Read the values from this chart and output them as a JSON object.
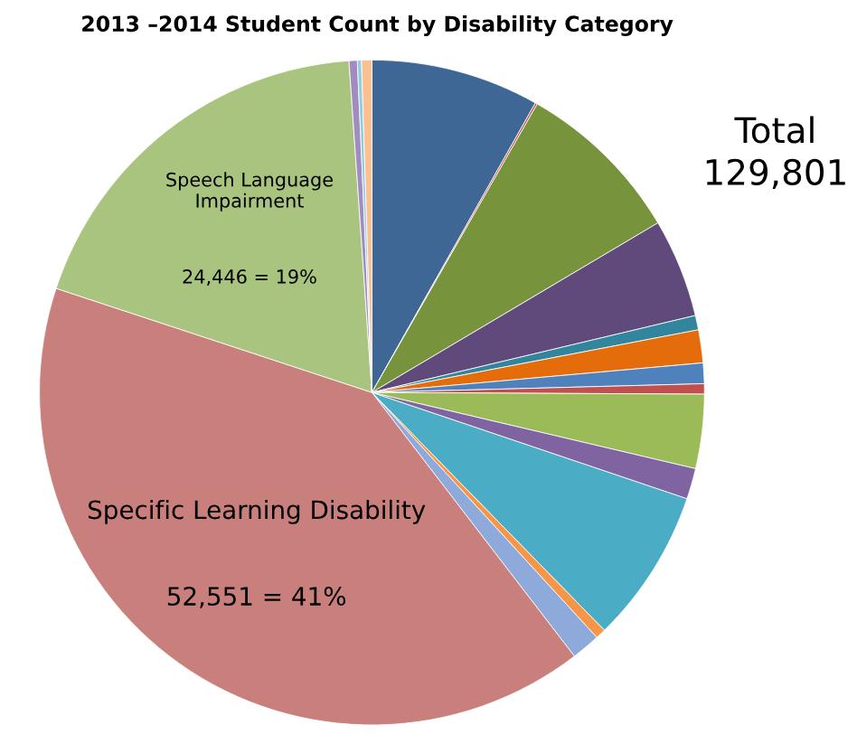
{
  "chart_data": {
    "type": "pie",
    "title": "2013 –2014 Student Count by Disability Category",
    "categories": [
      null,
      null,
      null,
      null,
      null,
      null,
      null,
      null,
      null,
      null,
      null,
      null,
      null,
      "Specific Learning Disability",
      "Speech Language\nImpairment",
      null,
      null,
      null
    ],
    "values": [
      10618,
      130,
      10644,
      6230,
      909,
      2077,
      1298,
      649,
      4673,
      1947,
      9735,
      649,
      1817,
      52551,
      24446,
      519,
      260,
      649
    ],
    "colors": [
      "#3f6796",
      "#c0504d",
      "#77933c",
      "#604a7b",
      "#31859c",
      "#e46c0a",
      "#4f81bd",
      "#c0504d",
      "#9bbb59",
      "#8064a2",
      "#4bacc6",
      "#f79646",
      "#8eaadb",
      "#c97f7b",
      "#a9c47f",
      "#a08cc0",
      "#93cddd",
      "#fac090"
    ],
    "value_labels": [
      null,
      null,
      null,
      null,
      null,
      null,
      null,
      null,
      null,
      null,
      null,
      null,
      null,
      "52,551 = 41%",
      "24,446 = 19%",
      null,
      null,
      null
    ],
    "annotations": [
      "Total\n129,801"
    ]
  }
}
